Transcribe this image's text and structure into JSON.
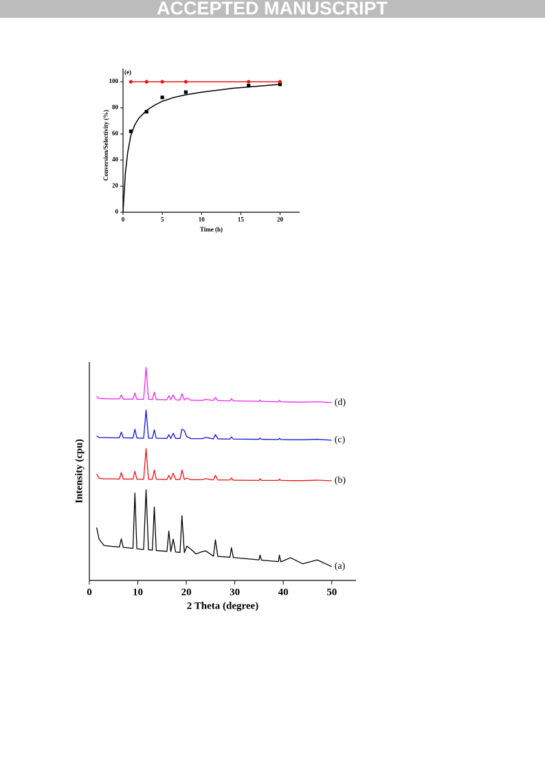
{
  "header": {
    "title": "ACCEPTED MANUSCRIPT"
  },
  "chart_data": [
    {
      "type": "line",
      "title": "(e)",
      "xlabel": "Time (h)",
      "ylabel": "Conversion/Selectivity (%)",
      "xlim": [
        0,
        22.5
      ],
      "xticks": [
        0,
        5,
        10,
        15,
        20
      ],
      "ylim": [
        0,
        110
      ],
      "yticks": [
        0,
        20,
        40,
        60,
        80,
        100
      ],
      "series": [
        {
          "color": "#000000",
          "marker": "square",
          "line": false,
          "x": [
            1,
            3,
            5,
            8,
            16,
            20
          ],
          "values": [
            62,
            77,
            88,
            92,
            97,
            98
          ]
        },
        {
          "color": "#000000",
          "marker": "none",
          "line": true,
          "x": [
            0,
            0.3,
            0.6,
            1,
            1.5,
            2,
            3,
            4,
            5,
            6.5,
            8,
            10,
            12,
            14,
            16,
            18,
            20
          ],
          "values": [
            0,
            30,
            46,
            59,
            67,
            72,
            78,
            82,
            85,
            88,
            90,
            92,
            93.5,
            95,
            96,
            97,
            98
          ]
        },
        {
          "color": "#ee1111",
          "marker": "circle",
          "line": true,
          "x": [
            1,
            3,
            5,
            8,
            16,
            20
          ],
          "values": [
            100,
            100,
            100,
            100,
            100,
            100
          ]
        }
      ]
    },
    {
      "type": "line",
      "xlabel": "2 Theta (degree)",
      "ylabel": "Intensity (cpu)",
      "xlim": [
        0,
        55
      ],
      "xticks": [
        0,
        10,
        20,
        30,
        40,
        50
      ],
      "ylim": [
        0,
        100
      ],
      "x": [
        1.5,
        2,
        3,
        5,
        6.2,
        6.6,
        7,
        9,
        9.4,
        9.8,
        11.2,
        11.7,
        12.2,
        13,
        13.4,
        13.8,
        16,
        16.4,
        16.8,
        17.3,
        17.8,
        18.7,
        19.1,
        19.6,
        20.1,
        21,
        22,
        23.3,
        24,
        25.6,
        26,
        26.5,
        29,
        29.3,
        29.7,
        35,
        35.2,
        35.5,
        39,
        39.2,
        39.5,
        41.5,
        44,
        47,
        50
      ],
      "series": [
        {
          "name": "(a)",
          "color": "#000000",
          "values": [
            24.2,
            19,
            16,
            15.5,
            15.3,
            19,
            15.1,
            14.7,
            40,
            14.5,
            14.2,
            41.5,
            14,
            13.9,
            33.6,
            13.7,
            13.3,
            22.6,
            13.2,
            18.9,
            13,
            12.8,
            29.6,
            12.7,
            15.7,
            14.2,
            12.1,
            13.2,
            13.5,
            11.1,
            18.6,
            11,
            10.6,
            15,
            10.5,
            9.4,
            11.6,
            9.3,
            8.6,
            11.6,
            8.5,
            10.4,
            7.6,
            9.4,
            6.3
          ]
        },
        {
          "name": "(b)",
          "color": "#ee1111",
          "values": [
            48.7,
            46.8,
            46.5,
            46.5,
            46.4,
            49.4,
            46.4,
            46.4,
            50,
            46.3,
            46.3,
            60.4,
            46.3,
            46.3,
            50.6,
            46.3,
            46.2,
            48.1,
            46.2,
            49.1,
            46.2,
            46.2,
            50.6,
            46.2,
            46.8,
            46.1,
            46.1,
            46.1,
            46.6,
            46,
            48.1,
            46,
            46,
            46.9,
            45.9,
            45.8,
            46.6,
            45.8,
            45.8,
            46.4,
            45.8,
            45.7,
            45.7,
            45.9,
            45.6
          ]
        },
        {
          "name": "(c)",
          "color": "#1111dd",
          "values": [
            66.2,
            65.4,
            65.4,
            65.3,
            65.3,
            67.9,
            65.3,
            65.2,
            69.2,
            65.2,
            65.1,
            78,
            65.1,
            65.1,
            68.9,
            65.1,
            65,
            66.7,
            65,
            67.4,
            65,
            65,
            69.2,
            68.6,
            65.8,
            64.9,
            64.9,
            64.9,
            65.5,
            64.8,
            66.8,
            64.8,
            64.7,
            65.7,
            64.7,
            64.6,
            65.2,
            64.6,
            64.5,
            65.1,
            64.5,
            64.4,
            64.4,
            64.6,
            64.2
          ]
        },
        {
          "name": "(d)",
          "color": "#ee22ee",
          "values": [
            84.3,
            83.3,
            83.2,
            83.1,
            83.1,
            84.9,
            83,
            83,
            85.8,
            82.9,
            82.9,
            97.5,
            82.9,
            82.8,
            86.2,
            82.8,
            82.7,
            84.6,
            82.7,
            84.9,
            82.7,
            82.6,
            85.5,
            82.6,
            83.5,
            82.5,
            82.5,
            82.4,
            82.9,
            82.4,
            83.8,
            82.3,
            82.2,
            83.2,
            82.2,
            82,
            82.6,
            82,
            81.8,
            82.4,
            81.8,
            81.7,
            81.6,
            81.8,
            81.4
          ]
        }
      ]
    }
  ]
}
